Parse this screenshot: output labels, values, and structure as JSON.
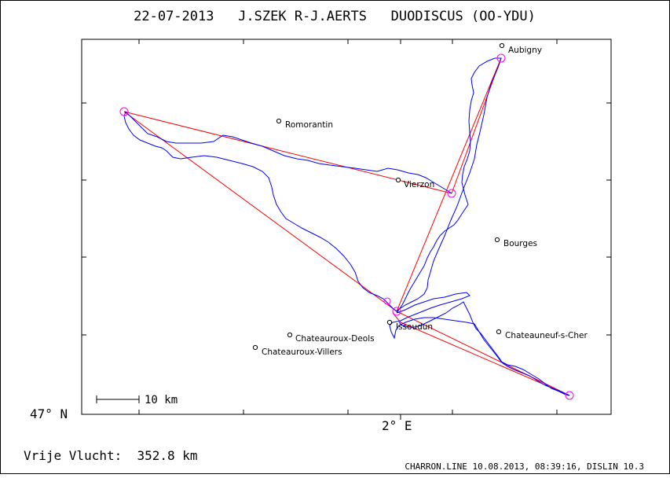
{
  "title": "22-07-2013   J.SZEK R-J.AERTS   DUODISCUS (OO-YDU)",
  "axis": {
    "lat_label": "47° N",
    "lon_label": "2° E"
  },
  "scale_bar": {
    "label": "10 km"
  },
  "towns": [
    {
      "name": "Aubigny"
    },
    {
      "name": "Romorantin"
    },
    {
      "name": "Vierzon"
    },
    {
      "name": "Bourges"
    },
    {
      "name": "Issoudun"
    },
    {
      "name": "Chateauroux-Deols"
    },
    {
      "name": "Chateauroux-Villers"
    },
    {
      "name": "Chateauneuf-s-Cher"
    }
  ],
  "footer": {
    "distance_label": "Vrije Vlucht:  352.8 km",
    "credit": "CHARRON.LINE 10.08.2013, 08:39:16, DISLIN 10.3"
  },
  "colors": {
    "track": "#0000ff",
    "task_line": "#ff0000",
    "turnpoint": "#ff00ff",
    "frame": "#000000"
  }
}
